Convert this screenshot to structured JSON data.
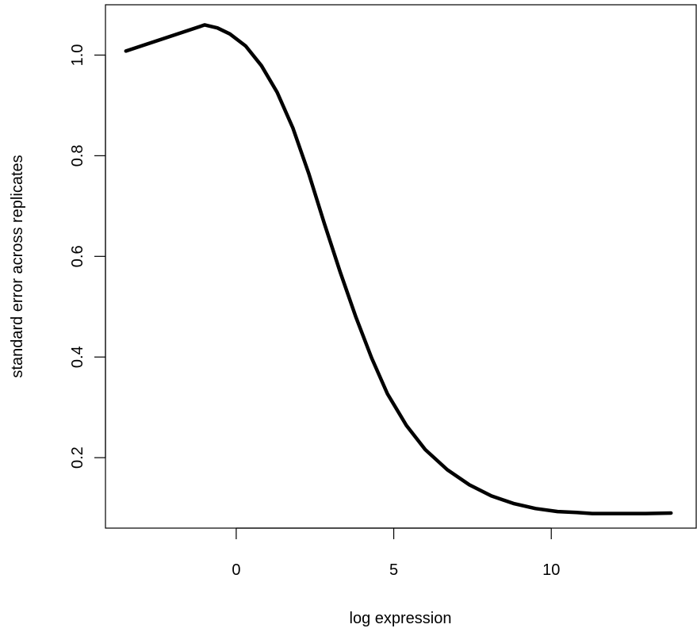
{
  "chart_data": {
    "type": "line",
    "xlabel": "log expression",
    "ylabel": "standard error across replicates",
    "xlim": [
      -4.15,
      14.6
    ],
    "ylim": [
      0.06,
      1.1
    ],
    "x_ticks": [
      0,
      5,
      10
    ],
    "x_tick_labels": [
      "0",
      "5",
      "10"
    ],
    "y_ticks": [
      0.2,
      0.4,
      0.6,
      0.8,
      1.0
    ],
    "y_tick_labels": [
      "0.2",
      "0.4",
      "0.6",
      "0.8",
      "1.0"
    ],
    "grid": false,
    "legend": "none",
    "line_color": "#000000",
    "series": [
      {
        "x": [
          -3.5,
          -1.0,
          -0.6,
          -0.2,
          0.3,
          0.8,
          1.3,
          1.8,
          2.3,
          2.8,
          3.3,
          3.8,
          4.3,
          4.8,
          5.4,
          6.0,
          6.7,
          7.4,
          8.1,
          8.8,
          9.5,
          10.2,
          10.8,
          11.3,
          12.0,
          13.0,
          13.8
        ],
        "y": [
          1.008,
          1.06,
          1.054,
          1.042,
          1.018,
          0.979,
          0.926,
          0.855,
          0.765,
          0.665,
          0.569,
          0.479,
          0.398,
          0.327,
          0.264,
          0.216,
          0.176,
          0.146,
          0.124,
          0.109,
          0.099,
          0.093,
          0.091,
          0.089,
          0.089,
          0.089,
          0.09
        ]
      }
    ]
  }
}
